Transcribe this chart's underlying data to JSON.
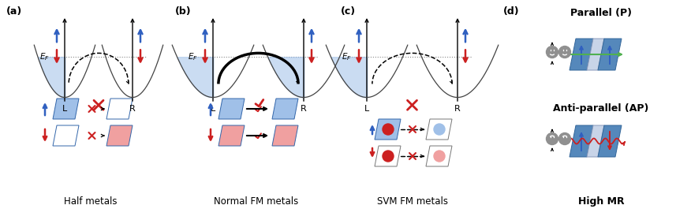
{
  "blue": "#3060c0",
  "light_blue": "#7aade0",
  "fill_blue": "#a0c0e8",
  "red": "#cc2020",
  "light_red": "#f0a0a0",
  "green": "#50b050",
  "gray": "#787878",
  "dgray": "#444444",
  "black": "#000000",
  "white": "#ffffff",
  "bg": "#ffffff",
  "panel_a_label": "(a)",
  "panel_b_label": "(b)",
  "panel_c_label": "(c)",
  "panel_d_label": "(d)",
  "label_a": "Half metals",
  "label_b": "Normal FM metals",
  "label_c": "SVM FM metals",
  "label_d": "High MR",
  "parallel_label": "Parallel (P)",
  "antiparallel_label": "Anti-parallel (AP)"
}
